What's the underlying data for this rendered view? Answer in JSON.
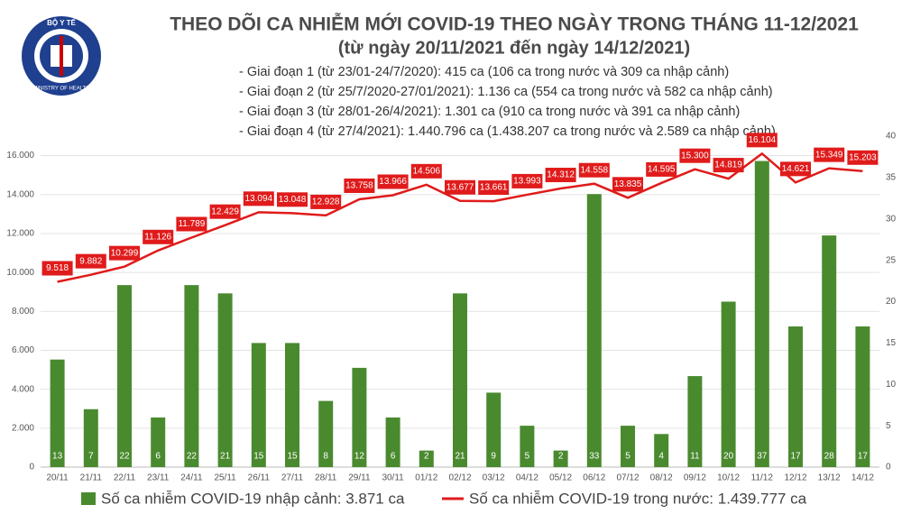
{
  "logo": {
    "top": "BỘ Y TẾ",
    "bottom": "MINISTRY OF HEALTH"
  },
  "chart_data": {
    "type": "bar",
    "title": "THEO DÕI CA NHIỄM MỚI COVID-19 THEO NGÀY TRONG THÁNG 11-12/2021",
    "subtitle": "(từ ngày 20/11/2021 đến ngày 14/12/2021)",
    "notes": [
      "- Giai đoạn 1 (từ 23/01-24/7/2020): 415 ca (106 ca trong nước và 309 ca nhập cảnh)",
      "- Giai đoạn 2 (từ 25/7/2020-27/01/2021): 1.136 ca (554 ca trong nước và 582 ca nhập cảnh)",
      "- Giai đoạn 3 (từ 28/01-26/4/2021): 1.301 ca (910 ca trong nước và 391 ca nhập cảnh)",
      "- Giai đoạn 4 (từ 27/4/2021): 1.440.796 ca (1.438.207 ca trong nước và 2.589 ca nhập cảnh)"
    ],
    "categories": [
      "20/11",
      "21/11",
      "22/11",
      "23/11",
      "24/11",
      "25/11",
      "26/11",
      "27/11",
      "28/11",
      "29/11",
      "30/11",
      "01/12",
      "02/12",
      "03/12",
      "04/12",
      "05/12",
      "06/12",
      "07/12",
      "08/12",
      "09/12",
      "10/12",
      "11/12",
      "12/12",
      "13/12",
      "14/12"
    ],
    "series": [
      {
        "name": "Số ca nhiễm COVID-19 nhập cảnh: 3.871 ca",
        "color": "#4a8a2f",
        "type": "bar",
        "axis": "y2",
        "values": [
          13,
          7,
          22,
          6,
          22,
          21,
          15,
          15,
          8,
          12,
          6,
          2,
          21,
          9,
          5,
          2,
          33,
          5,
          4,
          11,
          20,
          37,
          17,
          28,
          17
        ]
      },
      {
        "name": "Số ca nhiễm COVID-19 trong nước: 1.439.777 ca",
        "color": "#e01b1b",
        "type": "line",
        "values": [
          9518,
          9882,
          10299,
          11126,
          11789,
          12429,
          13094,
          13048,
          12928,
          13758,
          13966,
          14506,
          13677,
          13661,
          13993,
          14312,
          14558,
          13835,
          14595,
          15300,
          14819,
          16104,
          14621,
          15349,
          15203
        ],
        "value_labels": [
          "9.518",
          "9.882",
          "10.299",
          "11.126",
          "11.789",
          "12.429",
          "13.094",
          "13.048",
          "12.928",
          "13.758",
          "13.966",
          "14.506",
          "13.677",
          "13.661",
          "13.993",
          "14.312",
          "14.558",
          "13.835",
          "14.595",
          "15.300",
          "14.819",
          "16.104",
          "14.621",
          "15.349",
          "15.203"
        ]
      }
    ],
    "ylim": [
      0,
      17000
    ],
    "yticks": [
      0,
      {
        "value": 2000,
        "label": "2.000"
      },
      {
        "value": 4000,
        "label": "4.000"
      },
      {
        "value": 6000,
        "label": "6.000"
      },
      {
        "value": 8000,
        "label": "8.000"
      },
      {
        "value": 10000,
        "label": "10.000"
      },
      {
        "value": 12000,
        "label": "12.000"
      },
      {
        "value": 14000,
        "label": "14.000"
      },
      {
        "value": 16000,
        "label": "16.000"
      }
    ],
    "y2lim": [
      0,
      40
    ],
    "y2ticks": [
      0,
      5,
      10,
      15,
      20,
      25,
      30,
      35,
      40
    ],
    "grid": true
  }
}
